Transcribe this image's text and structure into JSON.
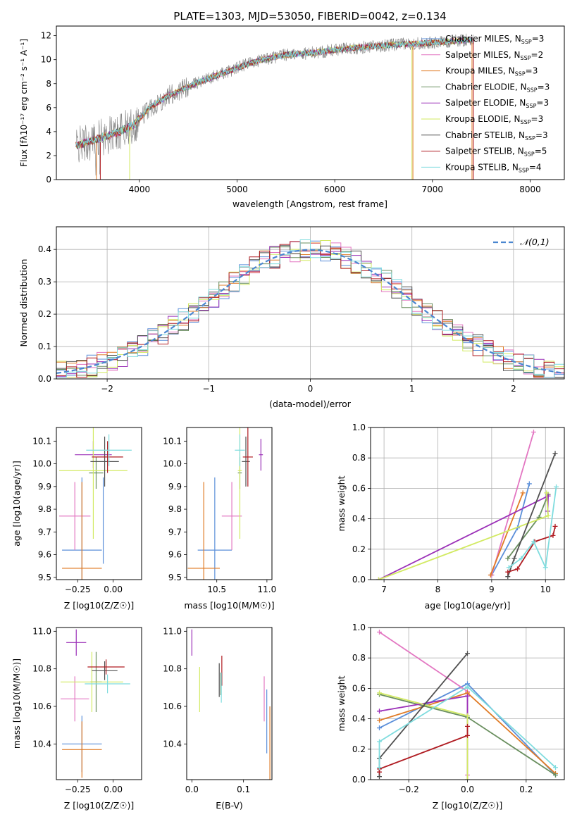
{
  "title": "PLATE=1303, MJD=53050, FIBERID=0042, z=0.134",
  "colors": {
    "Chabrier MILES": "#5b8fd9",
    "Salpeter MILES": "#e377c2",
    "Kroupa MILES": "#e07b26",
    "Chabrier ELODIE": "#6a8f5f",
    "Salpeter ELODIE": "#9b30b8",
    "Kroupa ELODIE": "#d2ea62",
    "Chabrier STELIB": "#505050",
    "Salpeter STELIB": "#b01c22",
    "Kroupa STELIB": "#7fdcde",
    "observed": "#808080"
  },
  "chart_data": [
    {
      "type": "line",
      "title": "PLATE=1303, MJD=53050, FIBERID=0042, z=0.134",
      "xlabel": "wavelength [Angstrom, rest frame]",
      "ylabel": "Flux [fλ10⁻¹⁷ erg cm⁻² s⁻¹ A⁻¹]",
      "xlim": [
        3150,
        8350
      ],
      "ylim": [
        0,
        12.8
      ],
      "xticks": [
        4000,
        5000,
        6000,
        7000,
        8000
      ],
      "yticks": [
        0,
        2,
        4,
        6,
        8,
        10,
        12
      ],
      "legend_position": "upper-right",
      "legend": [
        {
          "name": "Chabrier MILES",
          "label": "Chabrier MILES, N",
          "sub": "SSP",
          "eq": "=3"
        },
        {
          "name": "Salpeter MILES",
          "label": "Salpeter MILES, N",
          "sub": "SSP",
          "eq": "=2"
        },
        {
          "name": "Kroupa MILES",
          "label": "Kroupa MILES, N",
          "sub": "SSP",
          "eq": "=3"
        },
        {
          "name": "Chabrier ELODIE",
          "label": "Chabrier ELODIE, N",
          "sub": "SSP",
          "eq": "=3"
        },
        {
          "name": "Salpeter ELODIE",
          "label": "Salpeter ELODIE, N",
          "sub": "SSP",
          "eq": "=3"
        },
        {
          "name": "Kroupa ELODIE",
          "label": "Kroupa ELODIE, N",
          "sub": "SSP",
          "eq": "=3"
        },
        {
          "name": "Chabrier STELIB",
          "label": "Chabrier STELIB, N",
          "sub": "SSP",
          "eq": "=3"
        },
        {
          "name": "Salpeter STELIB",
          "label": "Salpeter STELIB, N",
          "sub": "SSP",
          "eq": "=5"
        },
        {
          "name": "Kroupa STELIB",
          "label": "Kroupa STELIB, N",
          "sub": "SSP",
          "eq": "=4"
        }
      ],
      "continuum_x": [
        3350,
        3500,
        3650,
        3800,
        3950,
        4100,
        4300,
        4600,
        4900,
        5200,
        5500,
        5800,
        6100,
        6400,
        6700,
        7000,
        7300,
        7420
      ],
      "continuum_y": [
        2.8,
        3.2,
        3.6,
        4.0,
        4.6,
        6.0,
        7.0,
        8.1,
        9.0,
        9.9,
        10.4,
        10.6,
        10.9,
        11.1,
        11.3,
        11.4,
        11.6,
        11.7
      ]
    },
    {
      "type": "histogram",
      "xlabel": "(data-model)/error",
      "ylabel": "Normed distribution",
      "xlim": [
        -2.5,
        2.5
      ],
      "ylim": [
        0,
        0.47
      ],
      "xticks": [
        -2,
        -1,
        0,
        1,
        2
      ],
      "yticks": [
        0.0,
        0.1,
        0.2,
        0.3,
        0.4
      ],
      "grid": true,
      "legend_position": "upper-right",
      "reference": {
        "name": "𝒩(0,1)",
        "mean": 0,
        "sigma": 1
      },
      "bin_width": 0.1
    },
    {
      "type": "scatter",
      "xlabel": "Z [log10(Z/Z☉)]",
      "ylabel": "age  [log10(age/yr)]",
      "xlim": [
        -0.4,
        0.2
      ],
      "ylim": [
        9.49,
        10.16
      ],
      "xticks": [
        -0.25,
        0.0
      ],
      "yticks": [
        9.5,
        9.6,
        9.7,
        9.8,
        9.9,
        10.0,
        10.1
      ],
      "points": [
        {
          "name": "Chabrier MILES",
          "x": -0.22,
          "xerr": 0.14,
          "y": 9.62,
          "yerr": 0.32
        },
        {
          "name": "Salpeter MILES",
          "x": -0.27,
          "xerr": 0.11,
          "y": 9.77,
          "yerr": 0.15
        },
        {
          "name": "Kroupa MILES",
          "x": -0.22,
          "xerr": 0.14,
          "y": 9.54,
          "yerr": 0.38
        },
        {
          "name": "Chabrier ELODIE",
          "x": -0.12,
          "xerr": 0.05,
          "y": 9.96,
          "yerr": 0.07
        },
        {
          "name": "Salpeter ELODIE",
          "x": -0.14,
          "xerr": 0.13,
          "y": 10.04,
          "yerr": 0.06
        },
        {
          "name": "Kroupa ELODIE",
          "x": -0.14,
          "xerr": 0.24,
          "y": 9.97,
          "yerr": 0.3
        },
        {
          "name": "Chabrier STELIB",
          "x": -0.06,
          "xerr": 0.1,
          "y": 10.01,
          "yerr": 0.11
        },
        {
          "name": "Salpeter STELIB",
          "x": -0.04,
          "xerr": 0.11,
          "y": 10.03,
          "yerr": 0.07
        },
        {
          "name": "Kroupa STELIB",
          "x": -0.03,
          "xerr": 0.16,
          "y": 10.06,
          "yerr": 0.07
        },
        {
          "name": "Chabrier MILES",
          "x": -0.07,
          "xerr": 0.0,
          "y": 9.75,
          "yerr": 0.19
        }
      ]
    },
    {
      "type": "scatter",
      "xlabel": "mass [log10(M/M☉)]",
      "ylabel": "",
      "xlim": [
        10.2,
        11.05
      ],
      "ylim": [
        9.49,
        10.16
      ],
      "xticks": [
        10.5,
        11.0
      ],
      "yticks": [
        9.5,
        9.6,
        9.7,
        9.8,
        9.9,
        10.0,
        10.1
      ],
      "points": [
        {
          "name": "Chabrier MILES",
          "x": 10.48,
          "xerr": 0.17,
          "y": 9.62,
          "yerr": 0.32
        },
        {
          "name": "Salpeter MILES",
          "x": 10.65,
          "xerr": 0.1,
          "y": 9.77,
          "yerr": 0.15
        },
        {
          "name": "Kroupa MILES",
          "x": 10.37,
          "xerr": 0.16,
          "y": 9.54,
          "yerr": 0.38
        },
        {
          "name": "Chabrier ELODIE",
          "x": 10.73,
          "xerr": 0.02,
          "y": 9.96,
          "yerr": 0.07
        },
        {
          "name": "Salpeter ELODIE",
          "x": 10.94,
          "xerr": 0.02,
          "y": 10.04,
          "yerr": 0.07
        },
        {
          "name": "Kroupa ELODIE",
          "x": 10.73,
          "xerr": 0.02,
          "y": 9.97,
          "yerr": 0.3
        },
        {
          "name": "Chabrier STELIB",
          "x": 10.79,
          "xerr": 0.04,
          "y": 10.01,
          "yerr": 0.11
        },
        {
          "name": "Salpeter STELIB",
          "x": 10.81,
          "xerr": 0.05,
          "y": 10.03,
          "yerr": 0.13
        },
        {
          "name": "Kroupa STELIB",
          "x": 10.73,
          "xerr": 0.05,
          "y": 10.06,
          "yerr": 0.07
        }
      ]
    },
    {
      "type": "line",
      "xlabel": "age  [log10(age/yr)]",
      "ylabel": "mass weight",
      "xlim": [
        6.75,
        10.35
      ],
      "ylim": [
        0,
        1.0
      ],
      "xticks": [
        7,
        8,
        9,
        10
      ],
      "yticks": [
        0.0,
        0.2,
        0.4,
        0.6,
        0.8,
        1.0
      ],
      "grid": true,
      "series": [
        {
          "name": "Chabrier MILES",
          "x": [
            9.0,
            9.48,
            9.7
          ],
          "y": [
            0.03,
            0.34,
            0.63
          ]
        },
        {
          "name": "Salpeter MILES",
          "x": [
            9.0,
            9.78
          ],
          "y": [
            0.03,
            0.97
          ]
        },
        {
          "name": "Kroupa MILES",
          "x": [
            8.98,
            9.58
          ],
          "y": [
            0.03,
            0.57
          ]
        },
        {
          "name": "Chabrier ELODIE",
          "x": [
            9.3,
            9.88,
            10.05
          ],
          "y": [
            0.14,
            0.41,
            0.56
          ]
        },
        {
          "name": "Salpeter ELODIE",
          "x": [
            6.9,
            10.05,
            10.04
          ],
          "y": [
            0.0,
            0.55,
            0.45
          ]
        },
        {
          "name": "Kroupa ELODIE",
          "x": [
            6.9,
            10.05,
            10.02
          ],
          "y": [
            0.0,
            0.42,
            0.57
          ]
        },
        {
          "name": "Chabrier STELIB",
          "x": [
            9.3,
            9.42,
            10.18
          ],
          "y": [
            0.02,
            0.14,
            0.83
          ]
        },
        {
          "name": "Salpeter STELIB",
          "x": [
            9.3,
            9.48,
            9.8,
            10.14,
            10.18
          ],
          "y": [
            0.05,
            0.07,
            0.25,
            0.29,
            0.35
          ]
        },
        {
          "name": "Kroupa STELIB",
          "x": [
            9.32,
            9.55,
            9.78,
            10.0,
            10.2
          ],
          "y": [
            0.08,
            0.14,
            0.25,
            0.08,
            0.61
          ]
        }
      ]
    },
    {
      "type": "scatter",
      "xlabel": "Z [log10(Z/Z☉)]",
      "ylabel": "mass [log10(M/M☉)]",
      "xlim": [
        -0.4,
        0.2
      ],
      "ylim": [
        10.21,
        11.02
      ],
      "xticks": [
        -0.25,
        0.0
      ],
      "yticks": [
        10.4,
        10.6,
        10.8,
        11.0
      ],
      "points": [
        {
          "name": "Chabrier MILES",
          "x": -0.22,
          "xerr": 0.14,
          "y": 10.4,
          "yerr": 0.15
        },
        {
          "name": "Salpeter MILES",
          "x": -0.27,
          "xerr": 0.1,
          "y": 10.64,
          "yerr": 0.12
        },
        {
          "name": "Kroupa MILES",
          "x": -0.22,
          "xerr": 0.14,
          "y": 10.37,
          "yerr": 0.15
        },
        {
          "name": "Chabrier ELODIE",
          "x": -0.12,
          "xerr": 0.04,
          "y": 10.73,
          "yerr": 0.16
        },
        {
          "name": "Salpeter ELODIE",
          "x": -0.26,
          "xerr": 0.07,
          "y": 10.94,
          "yerr": 0.07
        },
        {
          "name": "Kroupa ELODIE",
          "x": -0.15,
          "xerr": 0.22,
          "y": 10.73,
          "yerr": 0.16
        },
        {
          "name": "Chabrier STELIB",
          "x": -0.06,
          "xerr": 0.09,
          "y": 10.79,
          "yerr": 0.05
        },
        {
          "name": "Salpeter STELIB",
          "x": -0.05,
          "xerr": 0.13,
          "y": 10.81,
          "yerr": 0.04
        },
        {
          "name": "Kroupa STELIB",
          "x": -0.04,
          "xerr": 0.16,
          "y": 10.72,
          "yerr": 0.05
        }
      ]
    },
    {
      "type": "scatter",
      "xlabel": "E(B-V)",
      "ylabel": "",
      "xlim": [
        -0.01,
        0.155
      ],
      "ylim": [
        10.21,
        11.02
      ],
      "xticks": [
        0.0,
        0.1
      ],
      "yticks": [
        10.4,
        10.6,
        10.8,
        11.0
      ],
      "points": [
        {
          "name": "Salpeter ELODIE",
          "x": 0.0,
          "y": 10.94,
          "yerr": 0.07
        },
        {
          "name": "Kroupa ELODIE",
          "x": 0.015,
          "y": 10.69,
          "yerr": 0.12
        },
        {
          "name": "Chabrier STELIB",
          "x": 0.053,
          "y": 10.74,
          "yerr": 0.09
        },
        {
          "name": "Salpeter STELIB",
          "x": 0.058,
          "y": 10.79,
          "yerr": 0.08
        },
        {
          "name": "Chabrier ELODIE",
          "x": 0.056,
          "y": 10.72,
          "yerr": 0.06
        },
        {
          "name": "Kroupa STELIB",
          "x": 0.057,
          "y": 10.7,
          "yerr": 0.08
        },
        {
          "name": "Salpeter MILES",
          "x": 0.14,
          "y": 10.64,
          "yerr": 0.12
        },
        {
          "name": "Chabrier MILES",
          "x": 0.145,
          "y": 10.52,
          "yerr": 0.17
        },
        {
          "name": "Kroupa MILES",
          "x": 0.151,
          "y": 10.39,
          "yerr": 0.21
        }
      ]
    },
    {
      "type": "line",
      "xlabel": "Z [log10(Z/Z☉)]",
      "ylabel": "mass weight",
      "xlim": [
        -0.33,
        0.33
      ],
      "ylim": [
        0,
        1.0
      ],
      "xticks": [
        -0.2,
        0.0,
        0.2
      ],
      "yticks": [
        0.0,
        0.2,
        0.4,
        0.6,
        0.8,
        1.0
      ],
      "grid": true,
      "series": [
        {
          "name": "Chabrier MILES",
          "x": [
            -0.3,
            0.0,
            0.3
          ],
          "y": [
            0.34,
            0.63,
            0.03
          ]
        },
        {
          "name": "Salpeter MILES",
          "x": [
            -0.3,
            0.0,
            0.0
          ],
          "y": [
            0.97,
            0.58,
            0.03
          ]
        },
        {
          "name": "Kroupa MILES",
          "x": [
            -0.3,
            0.0,
            0.3
          ],
          "y": [
            0.39,
            0.57,
            0.04
          ]
        },
        {
          "name": "Chabrier ELODIE",
          "x": [
            -0.3,
            0.0,
            0.3
          ],
          "y": [
            0.56,
            0.41,
            0.03
          ]
        },
        {
          "name": "Salpeter ELODIE",
          "x": [
            -0.3,
            0.0,
            0.0
          ],
          "y": [
            0.45,
            0.55,
            0.0
          ]
        },
        {
          "name": "Kroupa ELODIE",
          "x": [
            -0.3,
            0.0,
            0.0
          ],
          "y": [
            0.57,
            0.42,
            0.0
          ]
        },
        {
          "name": "Chabrier STELIB",
          "x": [
            -0.3,
            -0.3,
            0.0
          ],
          "y": [
            0.02,
            0.14,
            0.83
          ]
        },
        {
          "name": "Salpeter STELIB",
          "x": [
            -0.3,
            -0.3,
            0.0,
            0.0
          ],
          "y": [
            0.05,
            0.07,
            0.29,
            0.35
          ]
        },
        {
          "name": "Kroupa STELIB",
          "x": [
            -0.3,
            -0.3,
            0.0,
            0.3
          ],
          "y": [
            0.08,
            0.25,
            0.61,
            0.08
          ]
        }
      ]
    }
  ]
}
